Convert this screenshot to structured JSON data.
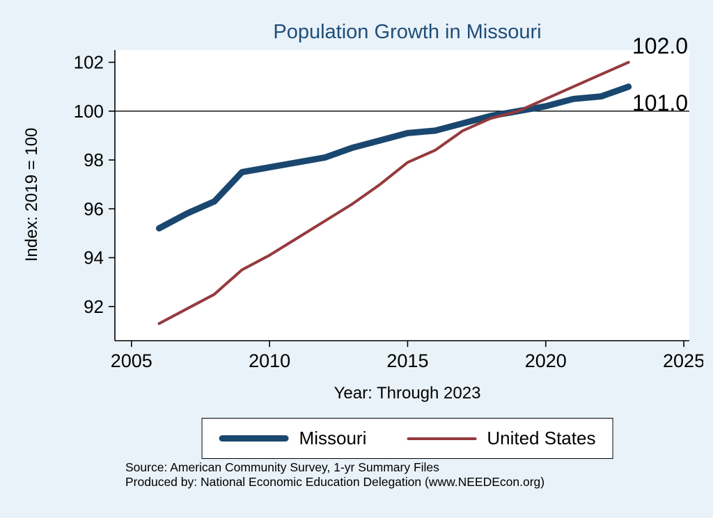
{
  "colors": {
    "background": "#e9f2f9",
    "title": "#1f4e79"
  },
  "chart_data": {
    "type": "line",
    "title": "Population Growth in Missouri",
    "xlabel": "Year: Through 2023",
    "ylabel": "Index: 2019 = 100",
    "xlim": [
      2004.4,
      2025.2
    ],
    "ylim": [
      90.6,
      102.5
    ],
    "xticks": [
      2005,
      2010,
      2015,
      2020,
      2025
    ],
    "yticks": [
      92,
      94,
      96,
      98,
      100,
      102
    ],
    "reference_line_y": 100,
    "grid": false,
    "legend_position": "bottom",
    "x": [
      2006,
      2007,
      2008,
      2009,
      2010,
      2011,
      2012,
      2013,
      2014,
      2015,
      2016,
      2017,
      2018,
      2019,
      2020,
      2021,
      2022,
      2023
    ],
    "series": [
      {
        "name": "Missouri",
        "color": "#1a476f",
        "width": 9,
        "end_label": "101.0",
        "values": [
          95.2,
          95.8,
          96.3,
          97.5,
          97.7,
          97.9,
          98.1,
          98.5,
          98.8,
          99.1,
          99.2,
          99.5,
          99.8,
          100.0,
          100.2,
          100.5,
          100.6,
          101.0
        ]
      },
      {
        "name": "United States",
        "color": "#953a3e",
        "width": 4,
        "end_label": "102.0",
        "values": [
          91.3,
          91.9,
          92.5,
          93.5,
          94.1,
          94.8,
          95.5,
          96.2,
          97.0,
          97.9,
          98.4,
          99.2,
          99.7,
          100.0,
          100.5,
          101.0,
          101.5,
          102.0
        ]
      }
    ],
    "notes": [
      "Source: American Community Survey, 1-yr Summary Files",
      "Produced by: National Economic Education Delegation (www.NEEDEcon.org)"
    ]
  }
}
